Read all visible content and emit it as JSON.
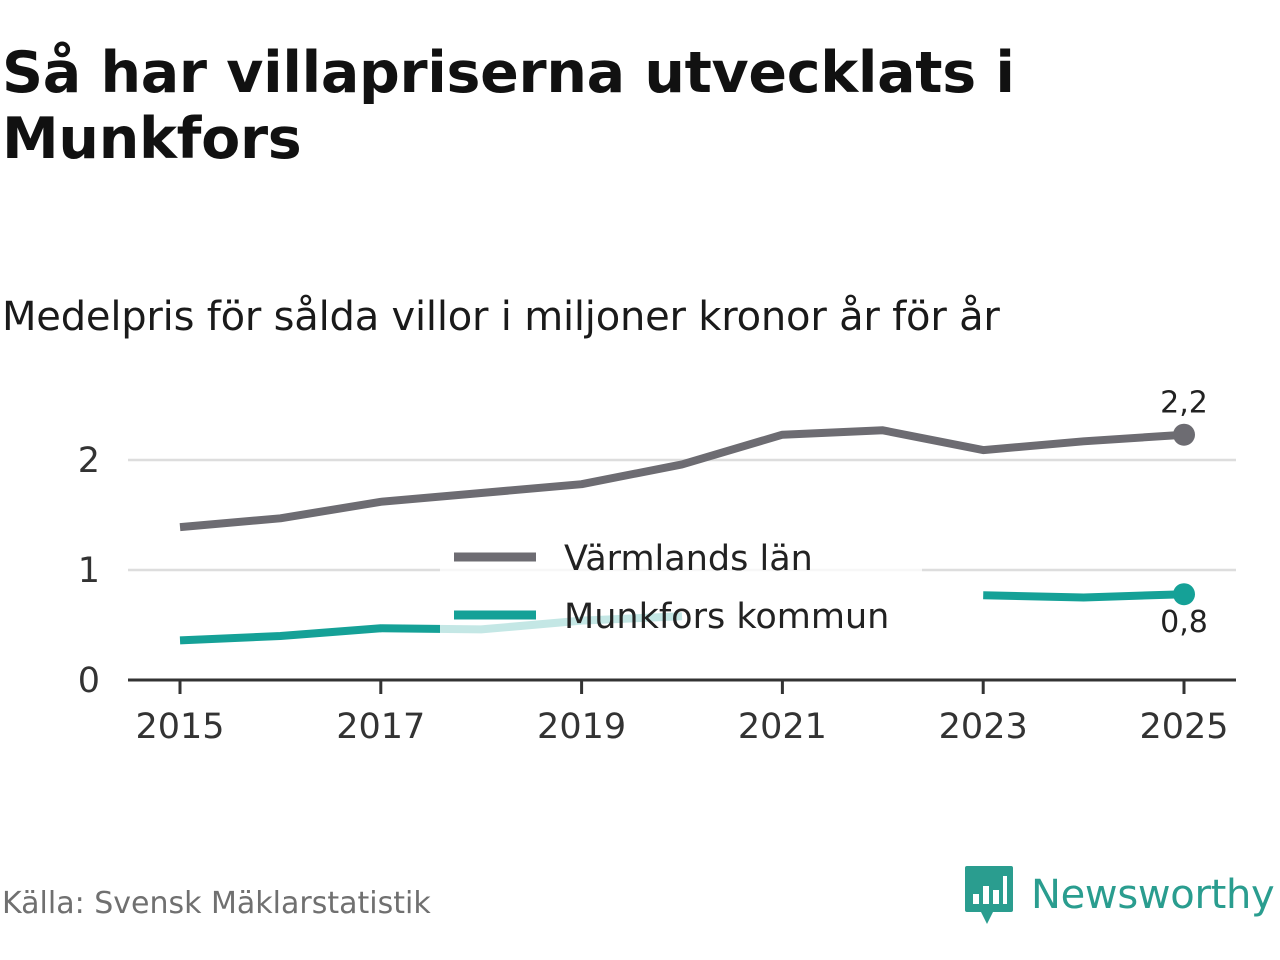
{
  "title": "Så har villapriserna utvecklats i Munkfors",
  "subtitle": "Medelpris för sålda villor i miljoner kronor år för år",
  "source": "Källa: Svensk Mäklarstatistik",
  "brand": {
    "name": "Newsworthy",
    "icon": "newsworthy-logo-icon",
    "color": "#2a9d8f"
  },
  "chart_data": {
    "type": "line",
    "x": [
      2015,
      2016,
      2017,
      2018,
      2019,
      2020,
      2021,
      2022,
      2023,
      2024,
      2025
    ],
    "x_ticks": [
      "2015",
      "2017",
      "2019",
      "2021",
      "2023",
      "2025"
    ],
    "y_ticks": [
      "0",
      "1",
      "2"
    ],
    "ylim": [
      0,
      2.5
    ],
    "grid": true,
    "legend_position": "center",
    "series": [
      {
        "name": "Värmlands län",
        "color": "#6d6c72",
        "values": [
          1.39,
          1.47,
          1.62,
          1.7,
          1.78,
          1.96,
          2.23,
          2.27,
          2.09,
          2.17,
          2.23
        ],
        "end_label": "2,2"
      },
      {
        "name": "Munkfors kommun",
        "color": "#15a197",
        "values": [
          0.36,
          0.4,
          0.47,
          0.46,
          0.54,
          0.58,
          null,
          null,
          0.77,
          0.75,
          0.78
        ],
        "end_label": "0,8"
      }
    ]
  }
}
